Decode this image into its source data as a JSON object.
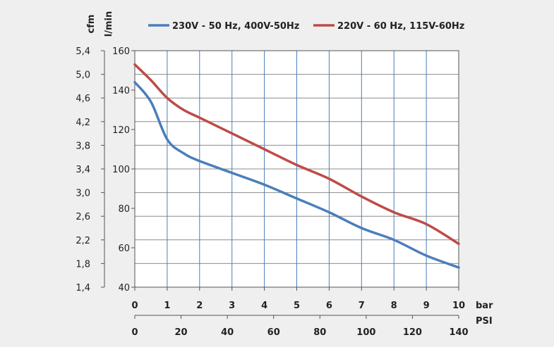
{
  "chart_data": {
    "type": "line",
    "x_label_bar": "bar",
    "x_label_psi": "PSI",
    "y_label_lmin": "l/min",
    "y_label_cfm": "cfm",
    "x_bar_ticks": [
      "0",
      "1",
      "2",
      "3",
      "4",
      "5",
      "6",
      "7",
      "8",
      "9",
      "10"
    ],
    "x_psi_ticks": [
      "0",
      "20",
      "40",
      "60",
      "80",
      "100",
      "120",
      "140"
    ],
    "y_lmin_ticks": [
      "40",
      "60",
      "80",
      "100",
      "120",
      "140",
      "160"
    ],
    "y_cfm_ticks": [
      "1,4",
      "1,8",
      "2,2",
      "2,6",
      "3,0",
      "3,4",
      "3,8",
      "4,2",
      "4,6",
      "5,0",
      "5,4"
    ],
    "xlim": [
      0,
      10
    ],
    "ylim": [
      40,
      160
    ],
    "grid": true,
    "legend_position": "top",
    "series": [
      {
        "name": "230V - 50 Hz, 400V-50Hz",
        "color": "#4a7ebb",
        "x": [
          0,
          0.5,
          1,
          1.5,
          2,
          3,
          4,
          5,
          6,
          7,
          8,
          9,
          10
        ],
        "y": [
          144,
          134,
          115,
          108,
          104,
          98,
          92,
          85,
          78,
          70,
          64,
          56,
          50
        ]
      },
      {
        "name": "220V - 60 Hz, 115V-60Hz",
        "color": "#be4b48",
        "x": [
          0,
          0.5,
          1,
          1.5,
          2,
          3,
          4,
          5,
          6,
          7,
          8,
          9,
          10
        ],
        "y": [
          153,
          145,
          136,
          130,
          126,
          118,
          110,
          102,
          95,
          86,
          78,
          72,
          62
        ]
      }
    ]
  }
}
